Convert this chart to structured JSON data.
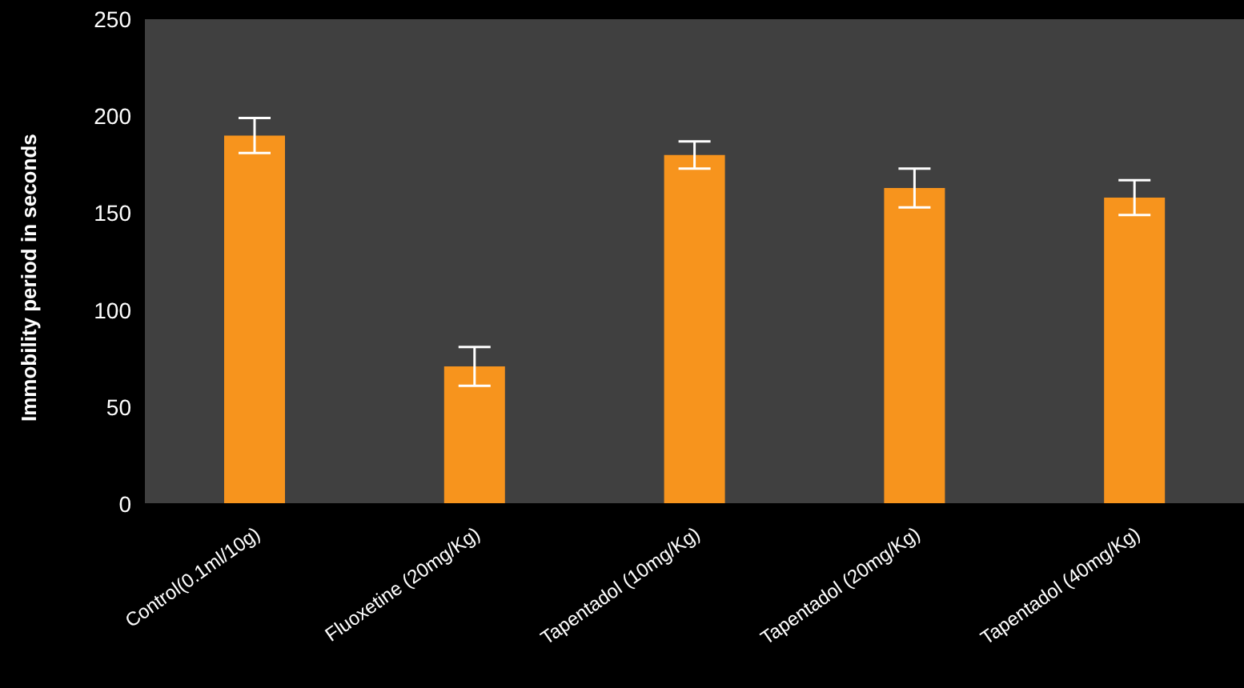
{
  "chart_data": {
    "type": "bar",
    "ylabel": "Immobility period in seconds",
    "categories": [
      "Control(0.1ml/10g)",
      "Fluoxetine (20mg/Kg)",
      "Tapentadol (10mg/Kg)",
      "Tapentadol (20mg/Kg)",
      "Tapentadol (40mg/Kg)"
    ],
    "values": [
      190,
      71,
      180,
      163,
      158
    ],
    "errors": [
      9,
      10,
      7,
      10,
      9
    ],
    "color": "#f7941d",
    "ylim": [
      0,
      250
    ],
    "yticks": [
      0,
      50,
      100,
      150,
      200,
      250
    ],
    "grid": false
  }
}
